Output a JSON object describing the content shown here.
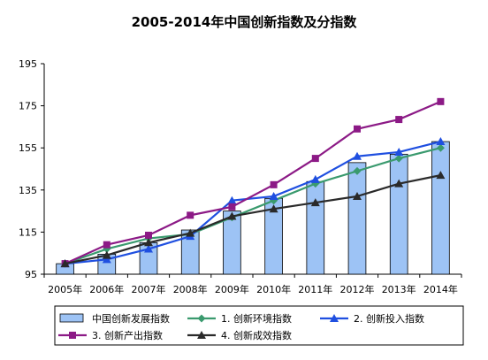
{
  "chart_data": {
    "type": "bar",
    "title": "2005-2014年中国创新指数及分指数",
    "categories": [
      "2005年",
      "2006年",
      "2007年",
      "2008年",
      "2009年",
      "2010年",
      "2011年",
      "2012年",
      "2013年",
      "2014年"
    ],
    "ylim": [
      95,
      195
    ],
    "yticks": [
      95,
      115,
      135,
      155,
      175,
      195
    ],
    "grid": false,
    "legend_position": "bottom",
    "series": [
      {
        "name": "中国创新发展指数",
        "kind": "bar",
        "color": "#9DC3F5",
        "values": [
          100,
          104.5,
          110,
          116,
          125,
          131,
          139,
          148,
          152,
          158
        ]
      },
      {
        "name": "1. 创新环境指数",
        "kind": "line",
        "marker": "diamond",
        "color": "#3A9A6E",
        "values": [
          100,
          107,
          112,
          114,
          122,
          130,
          138,
          144,
          150,
          155
        ]
      },
      {
        "name": "2. 创新投入指数",
        "kind": "line",
        "marker": "triangle",
        "color": "#1F4FE0",
        "values": [
          100,
          102,
          107,
          113,
          130,
          132,
          140,
          151,
          153,
          158
        ]
      },
      {
        "name": "3. 创新产出指数",
        "kind": "line",
        "marker": "square",
        "color": "#8C1A86",
        "values": [
          100,
          109,
          113.5,
          123,
          127,
          137.5,
          150,
          164,
          168.5,
          177
        ]
      },
      {
        "name": "4. 创新成效指数",
        "kind": "line",
        "marker": "triangle",
        "color": "#2A2A2A",
        "values": [
          100,
          104,
          110,
          114.5,
          122.5,
          126,
          129,
          132,
          138,
          142
        ]
      }
    ]
  }
}
